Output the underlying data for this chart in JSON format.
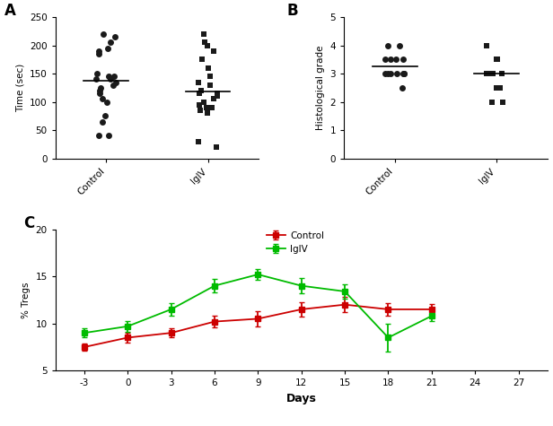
{
  "panel_A": {
    "title": "A",
    "ylabel": "Time (sec)",
    "ylim": [
      0,
      250
    ],
    "yticks": [
      0,
      50,
      100,
      150,
      200,
      250
    ],
    "categories": [
      "Control",
      "IgIV"
    ],
    "control_mean": 138,
    "igiv_mean": 118,
    "control_points": [
      220,
      215,
      205,
      195,
      190,
      185,
      150,
      145,
      145,
      140,
      140,
      135,
      130,
      125,
      120,
      115,
      105,
      100,
      75,
      65,
      40,
      40
    ],
    "igiv_points": [
      220,
      205,
      200,
      190,
      175,
      160,
      145,
      135,
      130,
      120,
      115,
      115,
      110,
      105,
      100,
      95,
      90,
      90,
      85,
      80,
      30,
      20
    ]
  },
  "panel_B": {
    "title": "B",
    "ylabel": "Histological grade",
    "ylim": [
      0,
      5
    ],
    "yticks": [
      0,
      1,
      2,
      3,
      4,
      5
    ],
    "categories": [
      "Control",
      "IgIV"
    ],
    "control_mean": 3.25,
    "igiv_mean": 3.0,
    "control_points": [
      4.0,
      4.0,
      3.5,
      3.5,
      3.5,
      3.5,
      3.0,
      3.0,
      3.0,
      3.0,
      3.0,
      3.0,
      3.0,
      2.5
    ],
    "igiv_points": [
      4.0,
      3.5,
      3.5,
      3.5,
      3.0,
      3.0,
      3.0,
      3.0,
      3.0,
      3.0,
      3.0,
      2.5,
      2.5,
      2.0,
      2.0
    ]
  },
  "panel_C": {
    "title": "C",
    "xlabel": "Days",
    "ylabel": "% Tregs",
    "ylim": [
      5,
      20
    ],
    "yticks": [
      5,
      10,
      15,
      20
    ],
    "xticks": [
      -3,
      0,
      3,
      6,
      9,
      12,
      15,
      18,
      21,
      24,
      27
    ],
    "days": [
      -3,
      0,
      3,
      6,
      9,
      12,
      15,
      18,
      21
    ],
    "control_mean": [
      7.5,
      8.5,
      9.0,
      10.2,
      10.5,
      11.5,
      12.0,
      11.5,
      11.5
    ],
    "control_err": [
      0.4,
      0.5,
      0.5,
      0.6,
      0.8,
      0.8,
      0.8,
      0.7,
      0.6
    ],
    "igiv_mean": [
      9.0,
      9.7,
      11.5,
      14.0,
      15.2,
      14.0,
      13.4,
      8.5,
      10.8
    ],
    "igiv_err": [
      0.5,
      0.6,
      0.7,
      0.7,
      0.6,
      0.8,
      0.8,
      1.5,
      0.5
    ],
    "control_color": "#cc0000",
    "igiv_color": "#00bb00",
    "legend_labels": [
      "Control",
      "IgIV"
    ]
  },
  "marker_circle": "o",
  "marker_square": "s",
  "marker_size_scatter": 5,
  "scatter_color": "#1a1a1a"
}
